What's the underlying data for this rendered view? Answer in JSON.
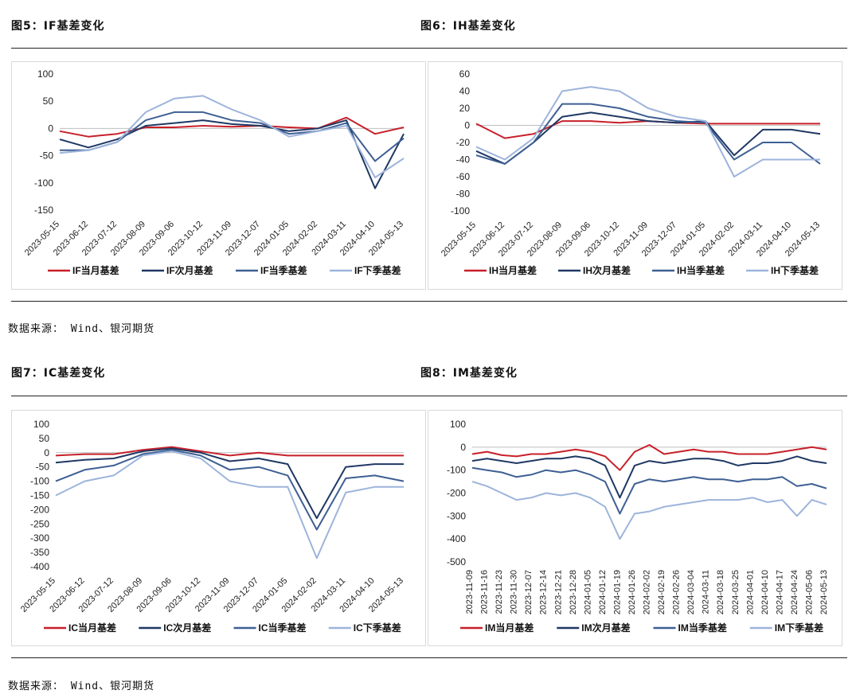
{
  "sections": [
    {
      "title": "图5：IF基差变化"
    },
    {
      "title": "图6：IH基差变化"
    },
    {
      "title": "图7：IC基差变化"
    },
    {
      "title": "图8：IM基差变化"
    }
  ],
  "source_text": "数据来源： Wind、银河期货",
  "colors": {
    "dark_red": "#c8202a",
    "navy": "#1f3864",
    "mid_blue": "#3e5f93",
    "light_blue": "#9db4db"
  },
  "chart_data": [
    {
      "type": "line",
      "ylim": [
        -150,
        100
      ],
      "yticks": [
        100,
        50,
        0,
        -50,
        -100,
        -150
      ],
      "x_labels": [
        "2023-05-15",
        "2023-06-12",
        "2023-07-12",
        "2023-08-09",
        "2023-09-06",
        "2023-10-12",
        "2023-11-09",
        "2023-12-07",
        "2024-01-05",
        "2024-02-02",
        "2024-03-11",
        "2024-04-10",
        "2024-05-13"
      ],
      "series": [
        {
          "name": "IF当月基差",
          "color": "#c8202a",
          "values": [
            -5,
            -15,
            -10,
            2,
            2,
            5,
            3,
            5,
            2,
            0,
            20,
            -10,
            2
          ]
        },
        {
          "name": "IF次月基差",
          "color": "#1f3864",
          "values": [
            -20,
            -35,
            -20,
            5,
            10,
            15,
            8,
            5,
            -5,
            0,
            15,
            -110,
            -10
          ]
        },
        {
          "name": "IF当季基差",
          "color": "#3e5f93",
          "values": [
            -40,
            -40,
            -25,
            15,
            30,
            30,
            15,
            10,
            -10,
            -5,
            10,
            -60,
            -18
          ]
        },
        {
          "name": "IF下季基差",
          "color": "#9db4db",
          "values": [
            -45,
            -40,
            -25,
            30,
            55,
            60,
            35,
            15,
            -15,
            -5,
            5,
            -90,
            -55
          ]
        }
      ]
    },
    {
      "type": "line",
      "ylim": [
        -100,
        60
      ],
      "yticks": [
        60,
        40,
        20,
        0,
        -20,
        -40,
        -60,
        -80,
        -100
      ],
      "x_labels": [
        "2023-05-15",
        "2023-06-12",
        "2023-07-12",
        "2023-08-09",
        "2023-09-06",
        "2023-10-12",
        "2023-11-09",
        "2023-12-07",
        "2024-01-05",
        "2024-02-02",
        "2024-03-11",
        "2024-04-10",
        "2024-05-13"
      ],
      "series": [
        {
          "name": "IH当月基差",
          "color": "#c8202a",
          "values": [
            2,
            -15,
            -10,
            5,
            5,
            3,
            5,
            3,
            2,
            2,
            2,
            2,
            2
          ]
        },
        {
          "name": "IH次月基差",
          "color": "#1f3864",
          "values": [
            -30,
            -45,
            -20,
            10,
            15,
            10,
            5,
            3,
            5,
            -35,
            -5,
            -5,
            -10
          ]
        },
        {
          "name": "IH当季基差",
          "color": "#3e5f93",
          "values": [
            -35,
            -45,
            -20,
            25,
            25,
            20,
            10,
            5,
            3,
            -40,
            -20,
            -20,
            -45
          ]
        },
        {
          "name": "IH下季基差",
          "color": "#9db4db",
          "values": [
            -25,
            -40,
            -15,
            40,
            45,
            40,
            20,
            10,
            5,
            -60,
            -40,
            -40,
            -40
          ]
        }
      ]
    },
    {
      "type": "line",
      "ylim": [
        -400,
        100
      ],
      "yticks": [
        100,
        50,
        0,
        -50,
        -100,
        -150,
        -200,
        -250,
        -300,
        -350,
        -400
      ],
      "x_labels": [
        "2023-05-15",
        "2023-06-12",
        "2023-07-12",
        "2023-08-09",
        "2023-09-06",
        "2023-10-12",
        "2023-11-09",
        "2023-12-07",
        "2024-01-05",
        "2024-02-02",
        "2024-03-11",
        "2024-04-10",
        "2024-05-13"
      ],
      "series": [
        {
          "name": "IC当月基差",
          "color": "#c8202a",
          "values": [
            -10,
            -5,
            -5,
            10,
            20,
            5,
            -10,
            0,
            -10,
            -10,
            -10,
            -10,
            -10
          ]
        },
        {
          "name": "IC次月基差",
          "color": "#1f3864",
          "values": [
            -35,
            -25,
            -20,
            5,
            15,
            0,
            -30,
            -20,
            -40,
            -230,
            -50,
            -40,
            -40
          ]
        },
        {
          "name": "IC当季基差",
          "color": "#3e5f93",
          "values": [
            -100,
            -60,
            -45,
            -5,
            10,
            -10,
            -60,
            -50,
            -80,
            -270,
            -90,
            -80,
            -100
          ]
        },
        {
          "name": "IC下季基差",
          "color": "#9db4db",
          "values": [
            -150,
            -100,
            -80,
            -10,
            5,
            -20,
            -100,
            -120,
            -120,
            -370,
            -140,
            -120,
            -120
          ]
        }
      ]
    },
    {
      "type": "line",
      "ylim": [
        -500,
        100
      ],
      "yticks": [
        100,
        0,
        -100,
        -200,
        -300,
        -400,
        -500
      ],
      "x_labels": [
        "2023-11-09",
        "2023-11-16",
        "2023-11-23",
        "2023-11-30",
        "2023-12-07",
        "2023-12-14",
        "2023-12-21",
        "2023-12-28",
        "2024-01-05",
        "2024-01-12",
        "2024-01-19",
        "2024-01-26",
        "2024-02-02",
        "2024-02-19",
        "2024-02-26",
        "2024-03-04",
        "2024-03-11",
        "2024-03-18",
        "2024-03-25",
        "2024-04-01",
        "2024-04-10",
        "2024-04-17",
        "2024-04-24",
        "2024-05-06",
        "2024-05-13"
      ],
      "series": [
        {
          "name": "IM当月基差",
          "color": "#c8202a",
          "values": [
            -30,
            -20,
            -35,
            -40,
            -30,
            -30,
            -20,
            -10,
            -20,
            -40,
            -100,
            -20,
            10,
            -30,
            -20,
            -10,
            -20,
            -20,
            -30,
            -30,
            -30,
            -20,
            -10,
            0,
            -10
          ]
        },
        {
          "name": "IM次月基差",
          "color": "#1f3864",
          "values": [
            -60,
            -50,
            -60,
            -70,
            -60,
            -50,
            -50,
            -40,
            -50,
            -80,
            -220,
            -80,
            -60,
            -70,
            -60,
            -50,
            -50,
            -60,
            -80,
            -70,
            -70,
            -60,
            -40,
            -60,
            -70
          ]
        },
        {
          "name": "IM当季基差",
          "color": "#3e5f93",
          "values": [
            -90,
            -100,
            -110,
            -130,
            -120,
            -100,
            -110,
            -100,
            -120,
            -150,
            -290,
            -160,
            -140,
            -150,
            -140,
            -130,
            -140,
            -140,
            -150,
            -140,
            -140,
            -130,
            -170,
            -160,
            -180
          ]
        },
        {
          "name": "IM下季基差",
          "color": "#9db4db",
          "values": [
            -150,
            -170,
            -200,
            -230,
            -220,
            -200,
            -210,
            -200,
            -220,
            -260,
            -400,
            -290,
            -280,
            -260,
            -250,
            -240,
            -230,
            -230,
            -230,
            -220,
            -240,
            -230,
            -300,
            -230,
            -250
          ]
        }
      ]
    }
  ]
}
